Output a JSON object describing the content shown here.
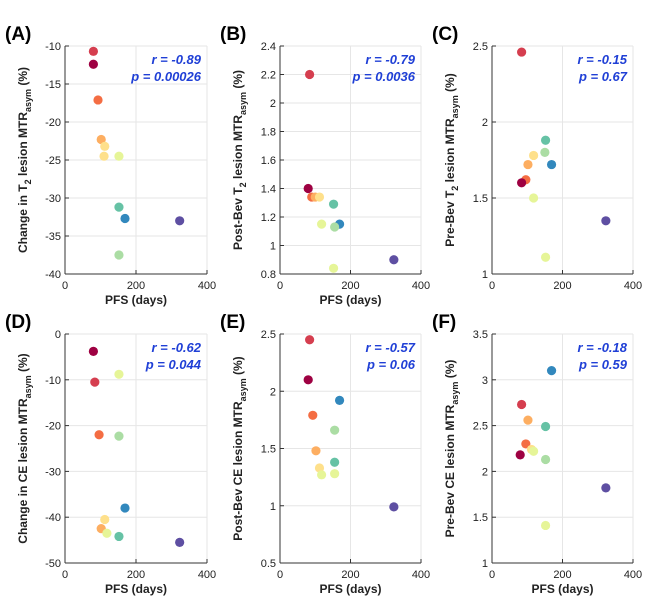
{
  "colors": {
    "dark_red": "#9e0142",
    "red": "#d53e4f",
    "orange": "#f46d43",
    "light_orange": "#fdae61",
    "yellow": "#fee08b",
    "pale_yellow": "#e6f598",
    "light_green": "#abdda4",
    "green": "#66c2a5",
    "blue": "#3288bd",
    "purple": "#5e4fa2",
    "stats_text": "#1f3fd6"
  },
  "chart_data": [
    {
      "type": "scatter",
      "panel_label": "(A)",
      "xlabel": "PFS (days)",
      "ylabel": {
        "prefix": "Change in T",
        "sub1": "2",
        "mid": " lesion MTR",
        "sub2": "asym",
        "suffix": " (%)"
      },
      "xlim": [
        0,
        400
      ],
      "xticks": [
        "0",
        "200",
        "400"
      ],
      "xtick_values": [
        0,
        200,
        400
      ],
      "ylim": [
        -40,
        -10
      ],
      "yticks": [
        "-40",
        "-35",
        "-30",
        "-25",
        "-20",
        "-15",
        "-10"
      ],
      "ytick_values": [
        -40,
        -35,
        -30,
        -25,
        -20,
        -15,
        -10
      ],
      "stats": {
        "r": "r = -0.89",
        "p": "p = 0.00026"
      },
      "points": [
        {
          "x": 80,
          "y": -10.7,
          "color": "red"
        },
        {
          "x": 80,
          "y": -12.4,
          "color": "dark_red"
        },
        {
          "x": 93,
          "y": -17.1,
          "color": "orange"
        },
        {
          "x": 102,
          "y": -22.3,
          "color": "light_orange"
        },
        {
          "x": 112,
          "y": -23.2,
          "color": "yellow"
        },
        {
          "x": 110,
          "y": -24.5,
          "color": "yellow"
        },
        {
          "x": 152,
          "y": -24.5,
          "color": "pale_yellow"
        },
        {
          "x": 152,
          "y": -31.2,
          "color": "green"
        },
        {
          "x": 169,
          "y": -32.7,
          "color": "blue"
        },
        {
          "x": 152,
          "y": -37.5,
          "color": "light_green"
        },
        {
          "x": 323,
          "y": -33.0,
          "color": "purple"
        }
      ]
    },
    {
      "type": "scatter",
      "panel_label": "(B)",
      "xlabel": "PFS (days)",
      "ylabel": {
        "prefix": "Post-Bev T",
        "sub1": "2",
        "mid": " lesion MTR",
        "sub2": "asym",
        "suffix": " (%)"
      },
      "xlim": [
        0,
        400
      ],
      "xticks": [
        "0",
        "200",
        "400"
      ],
      "xtick_values": [
        0,
        200,
        400
      ],
      "ylim": [
        0.8,
        2.4
      ],
      "yticks": [
        "0.8",
        "1",
        "1.2",
        "1.4",
        "1.6",
        "1.8",
        "2",
        "2.2",
        "2.4"
      ],
      "ytick_values": [
        0.8,
        1.0,
        1.2,
        1.4,
        1.6,
        1.8,
        2.0,
        2.2,
        2.4
      ],
      "stats": {
        "r": "r = -0.79",
        "p": "p = 0.0036"
      },
      "points": [
        {
          "x": 84,
          "y": 2.2,
          "color": "red"
        },
        {
          "x": 80,
          "y": 1.4,
          "color": "dark_red"
        },
        {
          "x": 90,
          "y": 1.34,
          "color": "orange"
        },
        {
          "x": 100,
          "y": 1.34,
          "color": "light_orange"
        },
        {
          "x": 112,
          "y": 1.34,
          "color": "yellow"
        },
        {
          "x": 152,
          "y": 1.29,
          "color": "green"
        },
        {
          "x": 118,
          "y": 1.15,
          "color": "pale_yellow"
        },
        {
          "x": 169,
          "y": 1.15,
          "color": "blue"
        },
        {
          "x": 155,
          "y": 1.13,
          "color": "light_green"
        },
        {
          "x": 152,
          "y": 0.84,
          "color": "pale_yellow"
        },
        {
          "x": 323,
          "y": 0.9,
          "color": "purple"
        }
      ]
    },
    {
      "type": "scatter",
      "panel_label": "(C)",
      "xlabel": "",
      "ylabel": {
        "prefix": "Pre-Bev T",
        "sub1": "2",
        "mid": " lesion MTR",
        "sub2": "asym",
        "suffix": " (%)"
      },
      "xlim": [
        0,
        400
      ],
      "xticks": [
        "0",
        "200",
        "400"
      ],
      "xtick_values": [
        0,
        200,
        400
      ],
      "ylim": [
        1,
        2.5
      ],
      "yticks": [
        "1",
        "1.5",
        "2",
        "2.5"
      ],
      "ytick_values": [
        1,
        1.5,
        2,
        2.5
      ],
      "stats": {
        "r": "r = -0.15",
        "p": "p = 0.67"
      },
      "points": [
        {
          "x": 84,
          "y": 2.46,
          "color": "red"
        },
        {
          "x": 152,
          "y": 1.88,
          "color": "green"
        },
        {
          "x": 118,
          "y": 1.78,
          "color": "yellow"
        },
        {
          "x": 150,
          "y": 1.8,
          "color": "light_green"
        },
        {
          "x": 102,
          "y": 1.72,
          "color": "light_orange"
        },
        {
          "x": 169,
          "y": 1.72,
          "color": "blue"
        },
        {
          "x": 96,
          "y": 1.62,
          "color": "orange"
        },
        {
          "x": 84,
          "y": 1.6,
          "color": "dark_red"
        },
        {
          "x": 118,
          "y": 1.5,
          "color": "pale_yellow"
        },
        {
          "x": 152,
          "y": 1.11,
          "color": "pale_yellow"
        },
        {
          "x": 323,
          "y": 1.35,
          "color": "purple"
        }
      ]
    },
    {
      "type": "scatter",
      "panel_label": "(D)",
      "xlabel": "PFS (days)",
      "ylabel": {
        "prefix": "Change in CE lesion MTR",
        "sub1": "",
        "mid": "",
        "sub2": "asym",
        "suffix": " (%)"
      },
      "xlim": [
        0,
        400
      ],
      "xticks": [
        "0",
        "200",
        "400"
      ],
      "xtick_values": [
        0,
        200,
        400
      ],
      "ylim": [
        -50,
        0
      ],
      "yticks": [
        "-50",
        "-40",
        "-30",
        "-20",
        "-10",
        "0"
      ],
      "ytick_values": [
        -50,
        -40,
        -30,
        -20,
        -10,
        0
      ],
      "stats": {
        "r": "r = -0.62",
        "p": "p = 0.044"
      },
      "points": [
        {
          "x": 80,
          "y": -3.8,
          "color": "dark_red"
        },
        {
          "x": 152,
          "y": -8.8,
          "color": "pale_yellow"
        },
        {
          "x": 84,
          "y": -10.5,
          "color": "red"
        },
        {
          "x": 96,
          "y": -22.0,
          "color": "orange"
        },
        {
          "x": 152,
          "y": -22.3,
          "color": "light_green"
        },
        {
          "x": 169,
          "y": -38.0,
          "color": "blue"
        },
        {
          "x": 112,
          "y": -40.5,
          "color": "yellow"
        },
        {
          "x": 102,
          "y": -42.5,
          "color": "light_orange"
        },
        {
          "x": 118,
          "y": -43.5,
          "color": "pale_yellow"
        },
        {
          "x": 152,
          "y": -44.2,
          "color": "green"
        },
        {
          "x": 323,
          "y": -45.5,
          "color": "purple"
        }
      ]
    },
    {
      "type": "scatter",
      "panel_label": "(E)",
      "xlabel": "PFS (days)",
      "ylabel": {
        "prefix": "Post-Bev CE lesion MTR",
        "sub1": "",
        "mid": "",
        "sub2": "asym",
        "suffix": " (%)"
      },
      "xlim": [
        0,
        400
      ],
      "xticks": [
        "0",
        "200",
        "400"
      ],
      "xtick_values": [
        0,
        200,
        400
      ],
      "ylim": [
        0.5,
        2.5
      ],
      "yticks": [
        "0.5",
        "1",
        "1.5",
        "2",
        "2.5"
      ],
      "ytick_values": [
        0.5,
        1,
        1.5,
        2,
        2.5
      ],
      "stats": {
        "r": "r = -0.57",
        "p": "p = 0.06"
      },
      "points": [
        {
          "x": 84,
          "y": 2.45,
          "color": "red"
        },
        {
          "x": 80,
          "y": 2.1,
          "color": "dark_red"
        },
        {
          "x": 169,
          "y": 1.92,
          "color": "blue"
        },
        {
          "x": 93,
          "y": 1.79,
          "color": "orange"
        },
        {
          "x": 155,
          "y": 1.66,
          "color": "light_green"
        },
        {
          "x": 102,
          "y": 1.48,
          "color": "light_orange"
        },
        {
          "x": 155,
          "y": 1.38,
          "color": "green"
        },
        {
          "x": 112,
          "y": 1.33,
          "color": "yellow"
        },
        {
          "x": 155,
          "y": 1.28,
          "color": "pale_yellow"
        },
        {
          "x": 118,
          "y": 1.27,
          "color": "pale_yellow"
        },
        {
          "x": 323,
          "y": 0.99,
          "color": "purple"
        }
      ]
    },
    {
      "type": "scatter",
      "panel_label": "(F)",
      "xlabel": "PFS (days)",
      "ylabel": {
        "prefix": "Pre-Bev CE lesion MTR",
        "sub1": "",
        "mid": "",
        "sub2": "asym",
        "suffix": " (%)"
      },
      "xlim": [
        0,
        400
      ],
      "xticks": [
        "0",
        "200",
        "400"
      ],
      "xtick_values": [
        0,
        200,
        400
      ],
      "ylim": [
        1,
        3.5
      ],
      "yticks": [
        "1",
        "1.5",
        "2",
        "2.5",
        "3",
        "3.5"
      ],
      "ytick_values": [
        1,
        1.5,
        2,
        2.5,
        3,
        3.5
      ],
      "stats": {
        "r": "r = -0.18",
        "p": "p = 0.59"
      },
      "points": [
        {
          "x": 169,
          "y": 3.1,
          "color": "blue"
        },
        {
          "x": 84,
          "y": 2.73,
          "color": "red"
        },
        {
          "x": 102,
          "y": 2.56,
          "color": "light_orange"
        },
        {
          "x": 152,
          "y": 2.49,
          "color": "green"
        },
        {
          "x": 96,
          "y": 2.3,
          "color": "orange"
        },
        {
          "x": 112,
          "y": 2.24,
          "color": "yellow"
        },
        {
          "x": 118,
          "y": 2.22,
          "color": "pale_yellow"
        },
        {
          "x": 80,
          "y": 2.18,
          "color": "dark_red"
        },
        {
          "x": 152,
          "y": 2.13,
          "color": "light_green"
        },
        {
          "x": 152,
          "y": 1.41,
          "color": "pale_yellow"
        },
        {
          "x": 323,
          "y": 1.82,
          "color": "purple"
        }
      ]
    }
  ]
}
